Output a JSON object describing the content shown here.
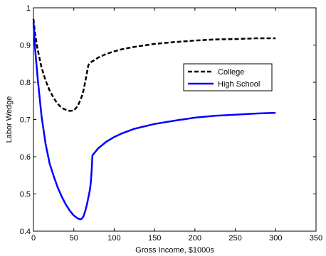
{
  "chart_data": {
    "type": "line",
    "title": "",
    "xlabel": "Gross Income, $1000s",
    "ylabel": "Labor Wedge",
    "xlim": [
      0,
      350
    ],
    "ylim": [
      0.4,
      1.0
    ],
    "xticks": [
      0,
      50,
      100,
      150,
      200,
      250,
      300,
      350
    ],
    "yticks": [
      0.4,
      0.5,
      0.6,
      0.7,
      0.8,
      0.9,
      1.0
    ],
    "xtick_labels": [
      "0",
      "50",
      "100",
      "150",
      "200",
      "250",
      "300",
      "350"
    ],
    "ytick_labels": [
      "0.4",
      "0.5",
      "0.6",
      "0.7",
      "0.8",
      "0.9",
      "1"
    ],
    "grid": false,
    "legend_position": "upper-right",
    "series": [
      {
        "name": "College",
        "color": "#000000",
        "style": "dashed",
        "x": [
          0,
          2,
          5,
          10,
          15,
          20,
          25,
          30,
          35,
          40,
          45,
          50,
          55,
          58,
          60,
          62,
          64,
          66,
          68,
          70,
          72,
          75,
          80,
          90,
          100,
          110,
          125,
          150,
          175,
          200,
          225,
          250,
          275,
          300
        ],
        "y": [
          0.97,
          0.93,
          0.89,
          0.84,
          0.805,
          0.778,
          0.758,
          0.742,
          0.731,
          0.726,
          0.723,
          0.724,
          0.737,
          0.752,
          0.763,
          0.778,
          0.8,
          0.823,
          0.846,
          0.851,
          0.855,
          0.859,
          0.866,
          0.876,
          0.883,
          0.889,
          0.895,
          0.903,
          0.908,
          0.912,
          0.915,
          0.916,
          0.918,
          0.918
        ]
      },
      {
        "name": "High School",
        "color": "#0000ff",
        "style": "solid",
        "x": [
          0,
          2,
          5,
          10,
          15,
          20,
          25,
          30,
          35,
          40,
          45,
          50,
          55,
          58,
          60,
          62,
          64,
          66,
          68,
          70,
          71,
          72,
          73,
          75,
          80,
          90,
          100,
          110,
          125,
          150,
          175,
          200,
          225,
          250,
          275,
          300
        ],
        "y": [
          0.96,
          0.89,
          0.815,
          0.71,
          0.635,
          0.582,
          0.548,
          0.518,
          0.493,
          0.472,
          0.455,
          0.442,
          0.434,
          0.432,
          0.434,
          0.44,
          0.453,
          0.47,
          0.49,
          0.512,
          0.53,
          0.56,
          0.603,
          0.609,
          0.622,
          0.64,
          0.653,
          0.663,
          0.675,
          0.688,
          0.697,
          0.705,
          0.71,
          0.713,
          0.716,
          0.718
        ]
      }
    ]
  }
}
